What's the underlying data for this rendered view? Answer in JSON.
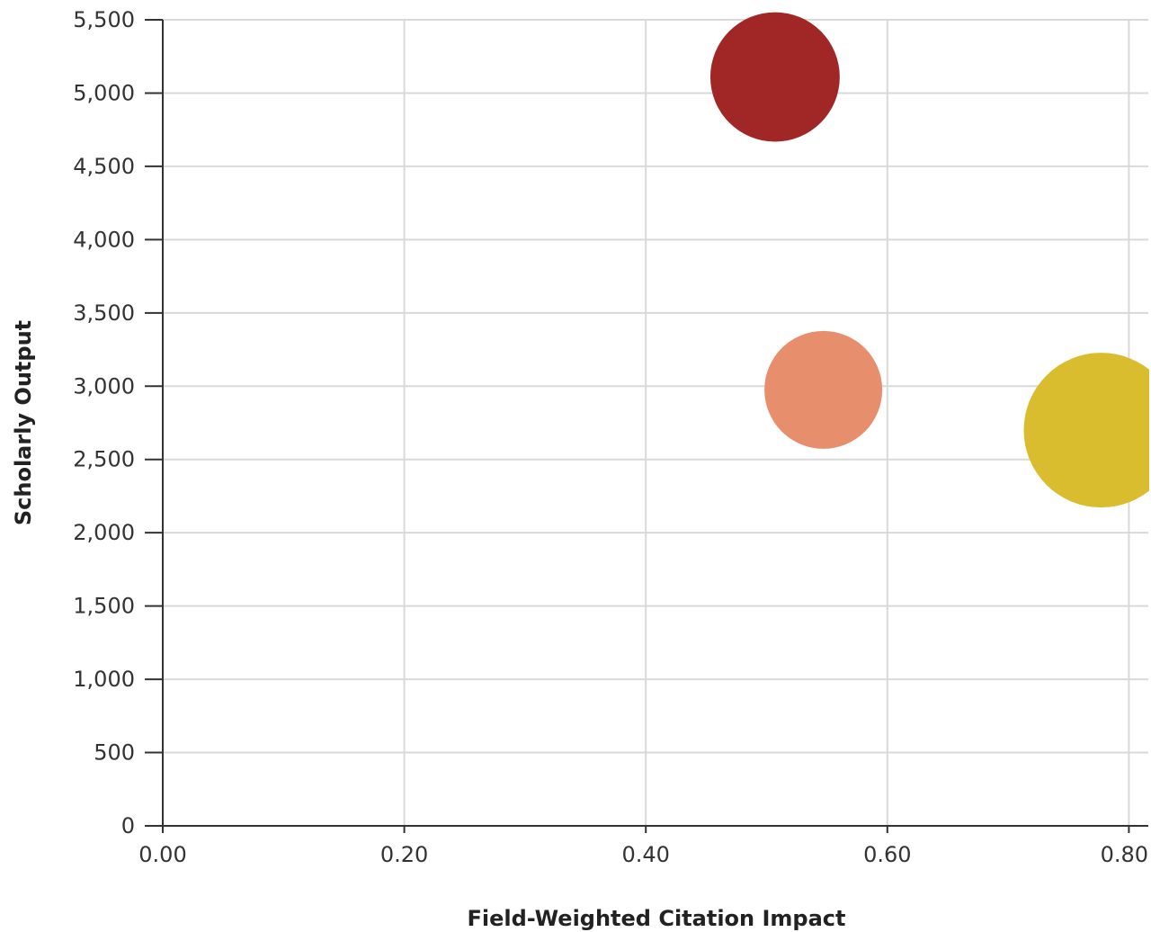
{
  "chart_data": {
    "type": "scatter",
    "subtype": "bubble",
    "title": "",
    "xlabel": "Field-Weighted Citation Impact",
    "ylabel": "Scholarly Output",
    "xlim": [
      0,
      0.82
    ],
    "ylim": [
      0,
      5500
    ],
    "x_ticks": [
      0,
      0.2,
      0.4,
      0.6,
      0.8
    ],
    "x_tick_labels": [
      "0.00",
      "0.20",
      "0.40",
      "0.60",
      "0.80"
    ],
    "y_ticks": [
      0,
      500,
      1000,
      1500,
      2000,
      2500,
      3000,
      3500,
      4000,
      4500,
      5000,
      5500
    ],
    "y_tick_labels": [
      "0",
      "500",
      "1,000",
      "1,500",
      "2,000",
      "2,500",
      "3,000",
      "3,500",
      "4,000",
      "4,500",
      "5,000",
      "5,500"
    ],
    "grid": true,
    "legend": "none",
    "points": [
      {
        "x": 0.507,
        "y": 5110,
        "size": 0.7,
        "color": "#a12727"
      },
      {
        "x": 0.547,
        "y": 2975,
        "size": 0.58,
        "color": "#e78f6d"
      },
      {
        "x": 0.777,
        "y": 2700,
        "size": 1.0,
        "color": "#d9bd2e"
      }
    ]
  }
}
